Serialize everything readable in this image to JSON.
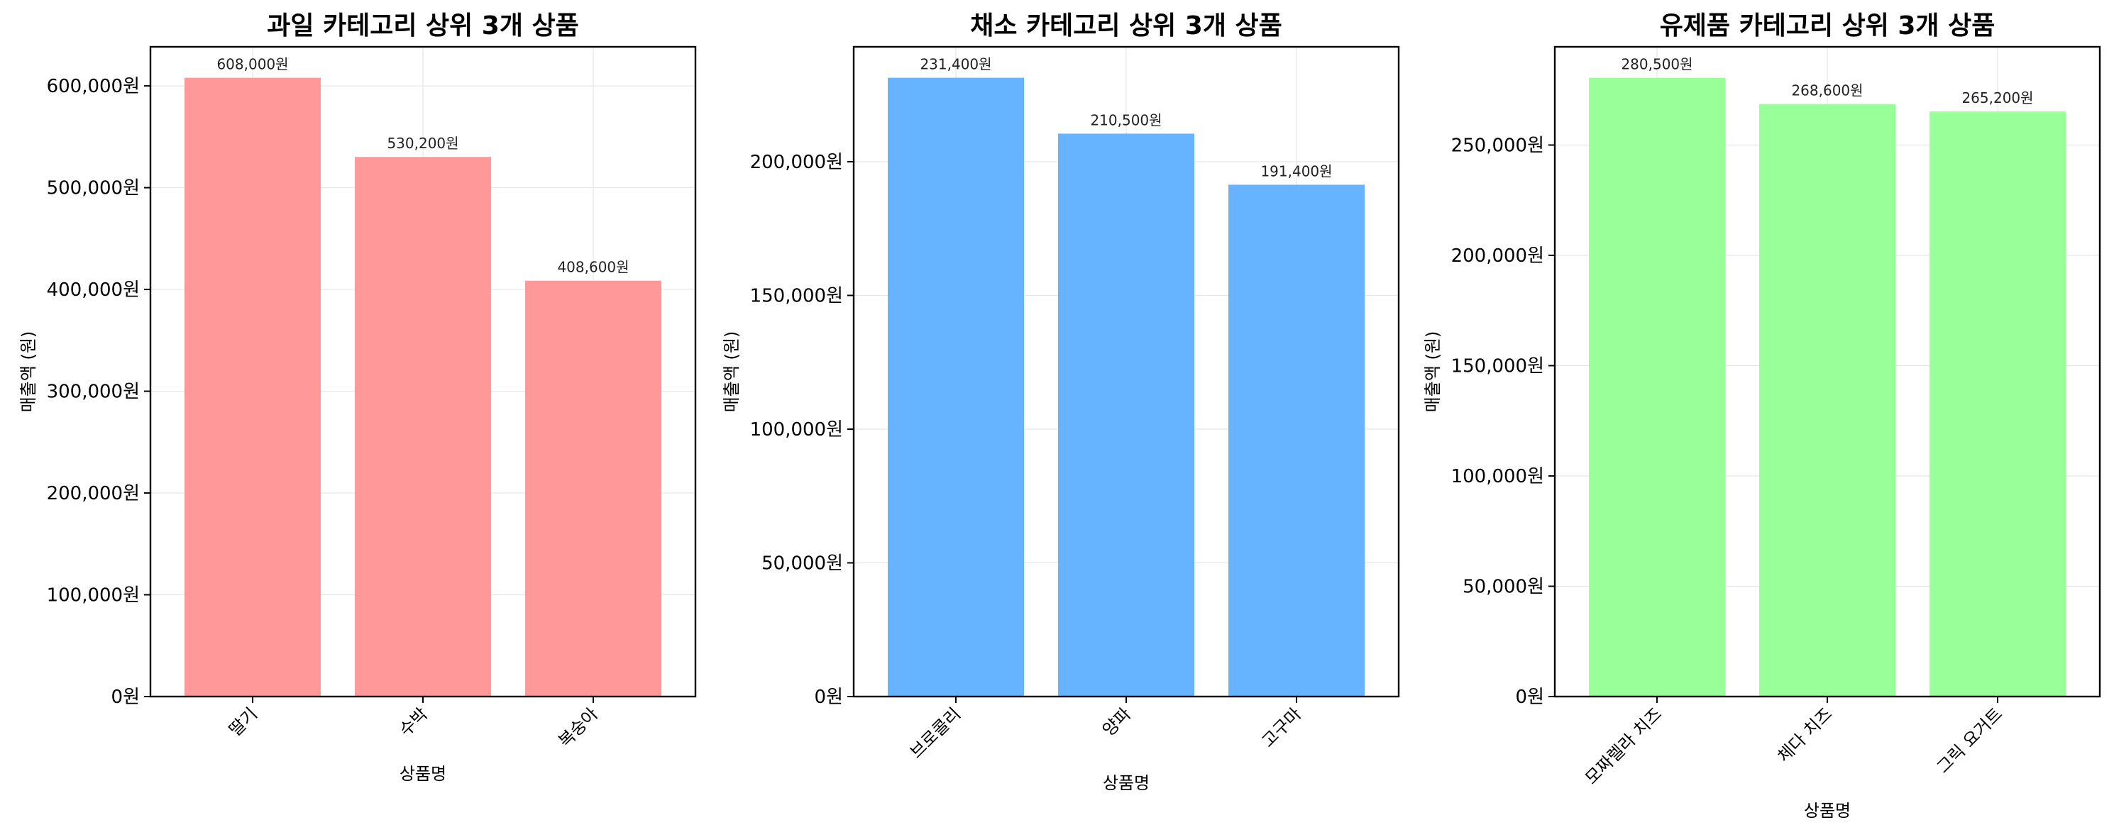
{
  "chart_data": [
    {
      "type": "bar",
      "title": "과일 카테고리 상위 3개 상품",
      "xlabel": "상품명",
      "ylabel": "매출액 (원)",
      "categories": [
        "딸기",
        "수박",
        "복숭아"
      ],
      "values": [
        608000,
        530200,
        408600
      ],
      "value_labels": [
        "608,000원",
        "530,200원",
        "408,600원"
      ],
      "yticks": [
        0,
        100000,
        200000,
        300000,
        400000,
        500000,
        600000
      ],
      "ytick_labels": [
        "0원",
        "100,000원",
        "200,000원",
        "300,000원",
        "400,000원",
        "500,000원",
        "600,000원"
      ],
      "ylim": [
        0,
        638400
      ],
      "color": "#FF9999",
      "grid": true
    },
    {
      "type": "bar",
      "title": "채소 카테고리 상위 3개 상품",
      "xlabel": "상품명",
      "ylabel": "매출액 (원)",
      "categories": [
        "브로콜리",
        "양파",
        "고구마"
      ],
      "values": [
        231400,
        210500,
        191400
      ],
      "value_labels": [
        "231,400원",
        "210,500원",
        "191,400원"
      ],
      "yticks": [
        0,
        50000,
        100000,
        150000,
        200000
      ],
      "ytick_labels": [
        "0원",
        "50,000원",
        "100,000원",
        "150,000원",
        "200,000원"
      ],
      "ylim": [
        0,
        242970
      ],
      "color": "#66B3FF",
      "grid": true
    },
    {
      "type": "bar",
      "title": "유제품 카테고리 상위 3개 상품",
      "xlabel": "상품명",
      "ylabel": "매출액 (원)",
      "categories": [
        "모짜렐라 치즈",
        "체다 치즈",
        "그릭 요거트"
      ],
      "values": [
        280500,
        268600,
        265200
      ],
      "value_labels": [
        "280,500원",
        "268,600원",
        "265,200원"
      ],
      "yticks": [
        0,
        50000,
        100000,
        150000,
        200000,
        250000
      ],
      "ytick_labels": [
        "0원",
        "50,000원",
        "100,000원",
        "150,000원",
        "200,000원",
        "250,000원"
      ],
      "ylim": [
        0,
        294525
      ],
      "color": "#99FF99",
      "grid": true
    }
  ]
}
